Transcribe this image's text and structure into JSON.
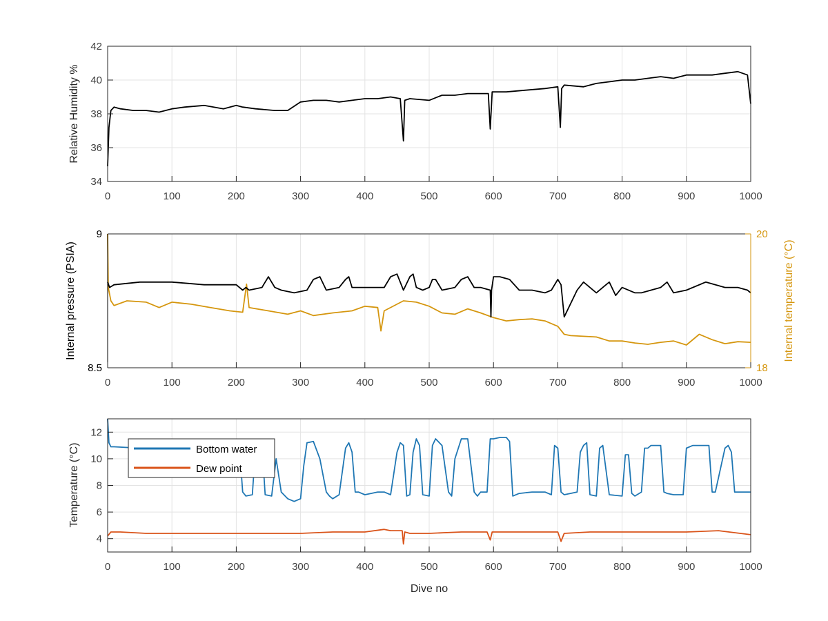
{
  "colors": {
    "black_series": "#000000",
    "temperature_series": "#D5960E",
    "bottom_water": "#1F77B4",
    "dew_point": "#D95319",
    "grid": "#E3E3E3",
    "axis": "#262626",
    "tick_text": "#404040"
  },
  "chart_data": [
    {
      "id": "humidity",
      "type": "line",
      "ylabel": "Relative Humidity %",
      "xlabel": "",
      "xlim": [
        0,
        1000
      ],
      "ylim": [
        34,
        42
      ],
      "xticks": [
        0,
        100,
        200,
        300,
        400,
        500,
        600,
        700,
        800,
        900,
        1000
      ],
      "yticks": [
        34,
        36,
        38,
        40,
        42
      ],
      "grid": true,
      "series": [
        {
          "axis": "left",
          "color_key": "black_series",
          "x": [
            0,
            2,
            5,
            10,
            20,
            40,
            60,
            80,
            100,
            120,
            150,
            180,
            200,
            210,
            230,
            260,
            280,
            300,
            320,
            340,
            360,
            380,
            400,
            420,
            440,
            455,
            460,
            462,
            470,
            500,
            520,
            540,
            560,
            580,
            592,
            595,
            598,
            620,
            650,
            680,
            700,
            704,
            706,
            710,
            740,
            760,
            780,
            800,
            820,
            840,
            860,
            880,
            900,
            920,
            940,
            960,
            980,
            995,
            1000
          ],
          "y": [
            34.9,
            37.2,
            38.2,
            38.4,
            38.3,
            38.2,
            38.2,
            38.1,
            38.3,
            38.4,
            38.5,
            38.3,
            38.5,
            38.4,
            38.3,
            38.2,
            38.2,
            38.7,
            38.8,
            38.8,
            38.7,
            38.8,
            38.9,
            38.9,
            39.0,
            38.9,
            36.4,
            38.8,
            38.9,
            38.8,
            39.1,
            39.1,
            39.2,
            39.2,
            39.2,
            37.1,
            39.3,
            39.3,
            39.4,
            39.5,
            39.6,
            37.2,
            39.5,
            39.7,
            39.6,
            39.8,
            39.9,
            40.0,
            40.0,
            40.1,
            40.2,
            40.1,
            40.3,
            40.3,
            40.3,
            40.4,
            40.5,
            40.3,
            38.6
          ]
        }
      ]
    },
    {
      "id": "pressure",
      "type": "line",
      "ylabel": "Internal pressure (PSIA)",
      "ylabel_right": "Internal temperature (°C)",
      "xlabel": "",
      "xlim": [
        0,
        1000
      ],
      "ylim": [
        8.5,
        9
      ],
      "ylim_right": [
        18,
        20
      ],
      "xticks": [
        0,
        100,
        200,
        300,
        400,
        500,
        600,
        700,
        800,
        900,
        1000
      ],
      "yticks": [
        8.5,
        9
      ],
      "yticks_right": [
        18,
        20
      ],
      "grid": true,
      "series": [
        {
          "axis": "left",
          "color_key": "black_series",
          "x": [
            0,
            3,
            10,
            50,
            100,
            150,
            200,
            210,
            215,
            220,
            240,
            245,
            250,
            260,
            270,
            290,
            310,
            320,
            330,
            340,
            360,
            370,
            375,
            380,
            390,
            410,
            430,
            440,
            450,
            460,
            470,
            475,
            480,
            490,
            500,
            505,
            510,
            520,
            540,
            550,
            560,
            570,
            580,
            595,
            596,
            597,
            600,
            610,
            625,
            640,
            660,
            680,
            690,
            700,
            705,
            710,
            730,
            740,
            760,
            770,
            780,
            790,
            800,
            820,
            830,
            860,
            870,
            880,
            900,
            930,
            960,
            970,
            980,
            995,
            1000
          ],
          "y": [
            8.82,
            8.8,
            8.81,
            8.82,
            8.82,
            8.81,
            8.81,
            8.79,
            8.8,
            8.79,
            8.8,
            8.82,
            8.84,
            8.8,
            8.79,
            8.78,
            8.79,
            8.83,
            8.84,
            8.79,
            8.8,
            8.83,
            8.84,
            8.8,
            8.8,
            8.8,
            8.8,
            8.84,
            8.85,
            8.79,
            8.84,
            8.85,
            8.8,
            8.79,
            8.8,
            8.83,
            8.83,
            8.79,
            8.8,
            8.83,
            8.84,
            8.8,
            8.8,
            8.79,
            8.69,
            8.79,
            8.84,
            8.84,
            8.83,
            8.79,
            8.79,
            8.78,
            8.79,
            8.83,
            8.81,
            8.69,
            8.79,
            8.82,
            8.78,
            8.8,
            8.82,
            8.77,
            8.8,
            8.78,
            8.78,
            8.8,
            8.82,
            8.78,
            8.79,
            8.82,
            8.8,
            8.8,
            8.8,
            8.79,
            8.78
          ]
        },
        {
          "axis": "right",
          "color_key": "temperature_series",
          "x": [
            0,
            1,
            5,
            10,
            30,
            60,
            80,
            100,
            130,
            160,
            190,
            210,
            216,
            220,
            250,
            280,
            300,
            320,
            350,
            380,
            400,
            420,
            425,
            430,
            460,
            480,
            500,
            520,
            540,
            560,
            580,
            600,
            620,
            640,
            660,
            680,
            700,
            710,
            720,
            740,
            760,
            780,
            800,
            820,
            840,
            860,
            880,
            900,
            920,
            940,
            960,
            980,
            1000
          ],
          "y": [
            20.0,
            19.2,
            19.0,
            18.93,
            19.0,
            18.98,
            18.9,
            18.98,
            18.95,
            18.9,
            18.85,
            18.83,
            19.25,
            18.9,
            18.85,
            18.8,
            18.85,
            18.78,
            18.82,
            18.85,
            18.92,
            18.9,
            18.55,
            18.85,
            19.0,
            18.98,
            18.92,
            18.82,
            18.8,
            18.88,
            18.82,
            18.75,
            18.7,
            18.72,
            18.73,
            18.7,
            18.62,
            18.5,
            18.48,
            18.47,
            18.46,
            18.4,
            18.4,
            18.37,
            18.35,
            18.38,
            18.4,
            18.34,
            18.5,
            18.42,
            18.36,
            18.39,
            18.38
          ]
        }
      ]
    },
    {
      "id": "temperature",
      "type": "line",
      "ylabel": "Temperature (°C)",
      "xlabel": "Dive no",
      "xlim": [
        0,
        1000
      ],
      "ylim": [
        3,
        13
      ],
      "xticks": [
        0,
        100,
        200,
        300,
        400,
        500,
        600,
        700,
        800,
        900,
        1000
      ],
      "yticks": [
        4,
        6,
        8,
        10,
        12
      ],
      "grid": true,
      "legend": "top-left",
      "series": [
        {
          "name": "Bottom water",
          "axis": "left",
          "color_key": "bottom_water",
          "x": [
            0,
            2,
            5,
            10,
            50,
            100,
            150,
            200,
            205,
            210,
            215,
            225,
            230,
            240,
            245,
            255,
            262,
            270,
            280,
            290,
            300,
            305,
            310,
            320,
            330,
            340,
            345,
            350,
            360,
            370,
            375,
            380,
            385,
            390,
            400,
            420,
            430,
            440,
            450,
            455,
            460,
            465,
            470,
            475,
            480,
            485,
            490,
            500,
            505,
            510,
            520,
            530,
            535,
            540,
            550,
            560,
            570,
            575,
            580,
            590,
            595,
            600,
            610,
            620,
            625,
            630,
            640,
            660,
            680,
            690,
            695,
            700,
            705,
            710,
            730,
            735,
            740,
            745,
            750,
            760,
            765,
            770,
            780,
            800,
            805,
            810,
            815,
            820,
            830,
            835,
            840,
            845,
            860,
            865,
            870,
            880,
            895,
            900,
            910,
            920,
            935,
            940,
            945,
            960,
            965,
            970,
            975,
            985,
            1000
          ],
          "y": [
            13.0,
            11.2,
            10.9,
            10.9,
            10.8,
            10.8,
            10.8,
            10.8,
            10.8,
            7.5,
            7.2,
            7.3,
            10.9,
            11.0,
            7.3,
            7.2,
            10.0,
            7.5,
            7.0,
            6.8,
            7.0,
            9.5,
            11.2,
            11.3,
            10.0,
            7.5,
            7.2,
            7.0,
            7.3,
            10.8,
            11.2,
            10.5,
            7.5,
            7.5,
            7.3,
            7.5,
            7.5,
            7.3,
            10.5,
            11.2,
            11.0,
            7.2,
            7.3,
            10.5,
            11.5,
            11.0,
            7.3,
            7.2,
            11.0,
            11.5,
            11.0,
            7.5,
            7.2,
            10.0,
            11.5,
            11.5,
            7.5,
            7.2,
            7.5,
            7.5,
            11.5,
            11.5,
            11.6,
            11.6,
            11.3,
            7.2,
            7.4,
            7.5,
            7.5,
            7.3,
            11.0,
            10.8,
            7.5,
            7.3,
            7.5,
            10.5,
            11.0,
            11.2,
            7.3,
            7.2,
            10.8,
            11.0,
            7.3,
            7.2,
            10.3,
            10.3,
            7.4,
            7.2,
            7.5,
            10.8,
            10.8,
            11.0,
            11.0,
            7.5,
            7.4,
            7.3,
            7.3,
            10.8,
            11.0,
            11.0,
            11.0,
            7.5,
            7.5,
            10.8,
            11.0,
            10.5,
            7.5,
            7.5,
            7.5
          ]
        },
        {
          "name": "Dew point",
          "axis": "left",
          "color_key": "dew_point",
          "x": [
            0,
            5,
            20,
            60,
            100,
            150,
            200,
            250,
            300,
            350,
            400,
            430,
            440,
            458,
            460,
            462,
            470,
            500,
            550,
            590,
            595,
            598,
            650,
            700,
            705,
            710,
            750,
            800,
            850,
            900,
            950,
            1000
          ],
          "y": [
            4.2,
            4.5,
            4.5,
            4.4,
            4.4,
            4.4,
            4.4,
            4.4,
            4.4,
            4.5,
            4.5,
            4.7,
            4.6,
            4.6,
            3.6,
            4.5,
            4.4,
            4.4,
            4.5,
            4.5,
            3.9,
            4.5,
            4.5,
            4.5,
            3.8,
            4.4,
            4.5,
            4.5,
            4.5,
            4.5,
            4.6,
            4.3
          ]
        }
      ]
    }
  ]
}
